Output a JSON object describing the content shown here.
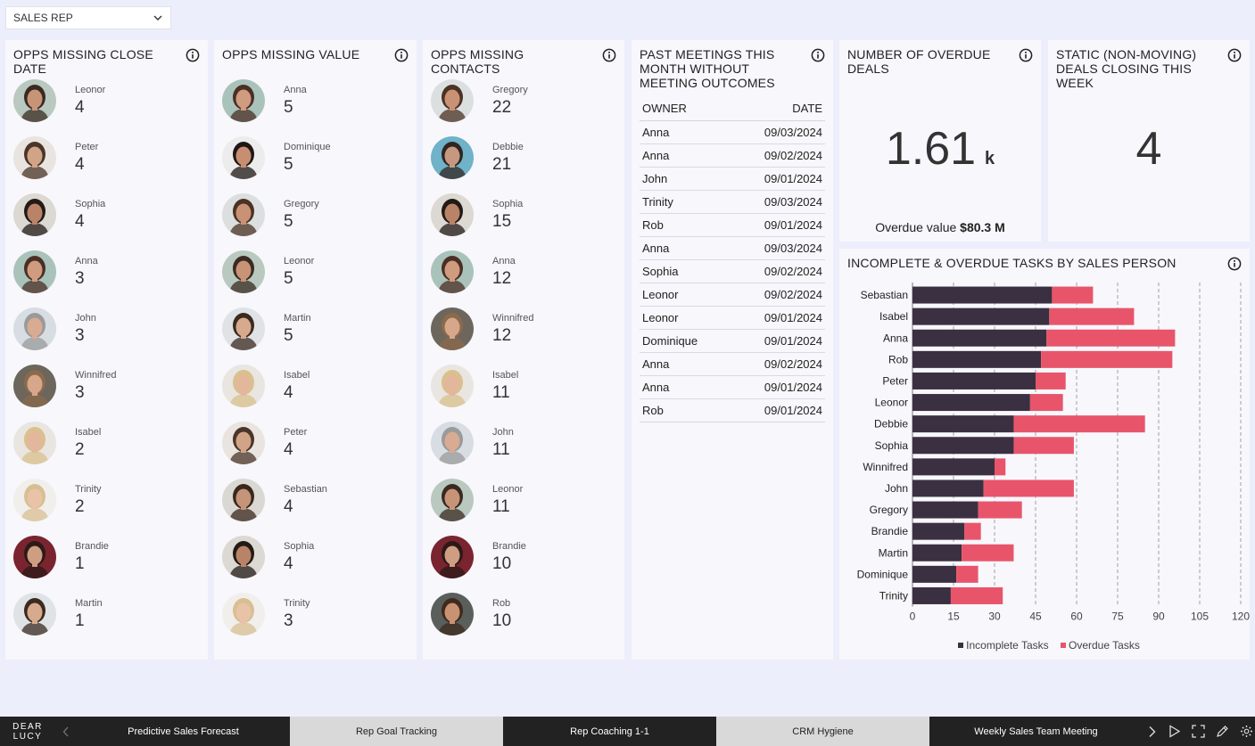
{
  "filter": {
    "label": "SALES REP"
  },
  "cards": {
    "missing_close": {
      "title": "OPPS MISSING CLOSE DATE",
      "people": [
        {
          "name": "Leonor",
          "value": "4",
          "skin": "#c89478",
          "hair": "#3a2a22",
          "bg": "#b9c9c0"
        },
        {
          "name": "Peter",
          "value": "4",
          "skin": "#d2a487",
          "hair": "#4a3528",
          "bg": "#e9e4df"
        },
        {
          "name": "Sophia",
          "value": "4",
          "skin": "#b98368",
          "hair": "#231a16",
          "bg": "#dcd8d2"
        },
        {
          "name": "Anna",
          "value": "3",
          "skin": "#cf9c80",
          "hair": "#4b2f24",
          "bg": "#a9c3bb"
        },
        {
          "name": "John",
          "value": "3",
          "skin": "#d8ab92",
          "hair": "#9a9a9a",
          "bg": "#d7dde2"
        },
        {
          "name": "Winnifred",
          "value": "3",
          "skin": "#d6a78a",
          "hair": "#8b6a4c",
          "bg": "#6c665d"
        },
        {
          "name": "Isabel",
          "value": "2",
          "skin": "#e2b79c",
          "hair": "#d9c08e",
          "bg": "#e9e5e0"
        },
        {
          "name": "Trinity",
          "value": "2",
          "skin": "#e8c3a7",
          "hair": "#d8bf93",
          "bg": "#f1efec"
        },
        {
          "name": "Brandie",
          "value": "1",
          "skin": "#cf9d82",
          "hair": "#2b1a17",
          "bg": "#7a2430"
        },
        {
          "name": "Martin",
          "value": "1",
          "skin": "#d7aa8e",
          "hair": "#3b2a20",
          "bg": "#dfe3e6"
        }
      ]
    },
    "missing_value": {
      "title": "OPPS MISSING VALUE",
      "people": [
        {
          "name": "Anna",
          "value": "5",
          "skin": "#cf9c80",
          "hair": "#4b2f24",
          "bg": "#a9c3bb"
        },
        {
          "name": "Dominique",
          "value": "5",
          "skin": "#c78e72",
          "hair": "#1f1715",
          "bg": "#ececec"
        },
        {
          "name": "Gregory",
          "value": "5",
          "skin": "#c99275",
          "hair": "#4a3224",
          "bg": "#dcdfe0"
        },
        {
          "name": "Leonor",
          "value": "5",
          "skin": "#c89478",
          "hair": "#3a2a22",
          "bg": "#b9c9c0"
        },
        {
          "name": "Martin",
          "value": "5",
          "skin": "#d7aa8e",
          "hair": "#3b2a20",
          "bg": "#dfe3e6"
        },
        {
          "name": "Isabel",
          "value": "4",
          "skin": "#e2b79c",
          "hair": "#d9c08e",
          "bg": "#e9e5e0"
        },
        {
          "name": "Peter",
          "value": "4",
          "skin": "#d2a487",
          "hair": "#4a3528",
          "bg": "#e9e4df"
        },
        {
          "name": "Sebastian",
          "value": "4",
          "skin": "#c69478",
          "hair": "#3a281d",
          "bg": "#dad8d2"
        },
        {
          "name": "Sophia",
          "value": "4",
          "skin": "#b98368",
          "hair": "#231a16",
          "bg": "#dcd8d2"
        },
        {
          "name": "Trinity",
          "value": "3",
          "skin": "#e8c3a7",
          "hair": "#d8bf93",
          "bg": "#f1efec"
        }
      ]
    },
    "missing_contacts": {
      "title": "OPPS MISSING CONTACTS",
      "people": [
        {
          "name": "Gregory",
          "value": "22",
          "skin": "#c99275",
          "hair": "#4a3224",
          "bg": "#dcdfe0"
        },
        {
          "name": "Debbie",
          "value": "21",
          "skin": "#c79880",
          "hair": "#2f2521",
          "bg": "#6fb2c9"
        },
        {
          "name": "Sophia",
          "value": "15",
          "skin": "#b98368",
          "hair": "#231a16",
          "bg": "#dcd8d2"
        },
        {
          "name": "Anna",
          "value": "12",
          "skin": "#cf9c80",
          "hair": "#4b2f24",
          "bg": "#a9c3bb"
        },
        {
          "name": "Winnifred",
          "value": "12",
          "skin": "#d6a78a",
          "hair": "#8b6a4c",
          "bg": "#6c665d"
        },
        {
          "name": "Isabel",
          "value": "11",
          "skin": "#e2b79c",
          "hair": "#d9c08e",
          "bg": "#e9e5e0"
        },
        {
          "name": "John",
          "value": "11",
          "skin": "#d8ab92",
          "hair": "#9a9a9a",
          "bg": "#d7dde2"
        },
        {
          "name": "Leonor",
          "value": "11",
          "skin": "#c89478",
          "hair": "#3a2a22",
          "bg": "#b9c9c0"
        },
        {
          "name": "Brandie",
          "value": "10",
          "skin": "#cf9d82",
          "hair": "#2b1a17",
          "bg": "#7a2430"
        },
        {
          "name": "Rob",
          "value": "10",
          "skin": "#c99273",
          "hair": "#3e2a1e",
          "bg": "#5a5f5c"
        }
      ]
    },
    "past_meetings": {
      "title": "PAST MEETINGS THIS MONTH WITHOUT MEETING OUTCOMES",
      "col_owner": "OWNER",
      "col_date": "DATE",
      "rows": [
        {
          "owner": "Anna",
          "date": "09/03/2024"
        },
        {
          "owner": "Anna",
          "date": "09/02/2024"
        },
        {
          "owner": "John",
          "date": "09/01/2024"
        },
        {
          "owner": "Trinity",
          "date": "09/03/2024"
        },
        {
          "owner": "Rob",
          "date": "09/01/2024"
        },
        {
          "owner": "Anna",
          "date": "09/03/2024"
        },
        {
          "owner": "Sophia",
          "date": "09/02/2024"
        },
        {
          "owner": "Leonor",
          "date": "09/02/2024"
        },
        {
          "owner": "Leonor",
          "date": "09/01/2024"
        },
        {
          "owner": "Dominique",
          "date": "09/01/2024"
        },
        {
          "owner": "Anna",
          "date": "09/02/2024"
        },
        {
          "owner": "Anna",
          "date": "09/01/2024"
        },
        {
          "owner": "Rob",
          "date": "09/01/2024"
        }
      ]
    },
    "overdue_deals": {
      "title": "NUMBER OF OVERDUE DEALS",
      "value": "1.61",
      "unit": "k",
      "caption": "Overdue value",
      "caption_value": "$80.3 M"
    },
    "static_deals": {
      "title": "STATIC (NON-MOVING) DEALS CLOSING THIS WEEK",
      "value": "4"
    },
    "tasks": {
      "title": "INCOMPLETE & OVERDUE TASKS BY SALES PERSON"
    }
  },
  "chart_data": {
    "type": "bar",
    "orientation": "horizontal",
    "stacked": true,
    "title": "INCOMPLETE & OVERDUE TASKS BY SALES PERSON",
    "categories": [
      "Sebastian",
      "Isabel",
      "Anna",
      "Rob",
      "Peter",
      "Leonor",
      "Debbie",
      "Sophia",
      "Winnifred",
      "John",
      "Gregory",
      "Brandie",
      "Martin",
      "Dominique",
      "Trinity"
    ],
    "series": [
      {
        "name": "Incomplete Tasks",
        "color": "#3b3041",
        "values": [
          51,
          50,
          49,
          47,
          45,
          43,
          37,
          37,
          30,
          26,
          24,
          19,
          18,
          16,
          14
        ]
      },
      {
        "name": "Overdue Tasks",
        "color": "#e8556b",
        "values": [
          15,
          31,
          47,
          48,
          11,
          12,
          48,
          22,
          4,
          33,
          16,
          6,
          19,
          8,
          19
        ]
      }
    ],
    "xlim": [
      0,
      120
    ],
    "xticks": [
      "0",
      "15",
      "30",
      "45",
      "60",
      "75",
      "90",
      "105",
      "120"
    ],
    "grid": "vertical dashed",
    "legend": "bottom"
  },
  "bottom": {
    "logo_line1": "DEAR",
    "logo_line2": "LUCY",
    "tabs": [
      {
        "label": "Predictive Sales Forecast",
        "light": false
      },
      {
        "label": "Rep Goal Tracking",
        "light": true
      },
      {
        "label": "Rep Coaching 1-1",
        "light": false
      },
      {
        "label": "CRM Hygiene",
        "light": true
      },
      {
        "label": "Weekly Sales Team Meeting",
        "light": false
      }
    ],
    "icons": [
      "chevron-left-icon",
      "chevron-right-icon",
      "play-icon",
      "fullscreen-icon",
      "pencil-icon",
      "gear-icon"
    ]
  }
}
